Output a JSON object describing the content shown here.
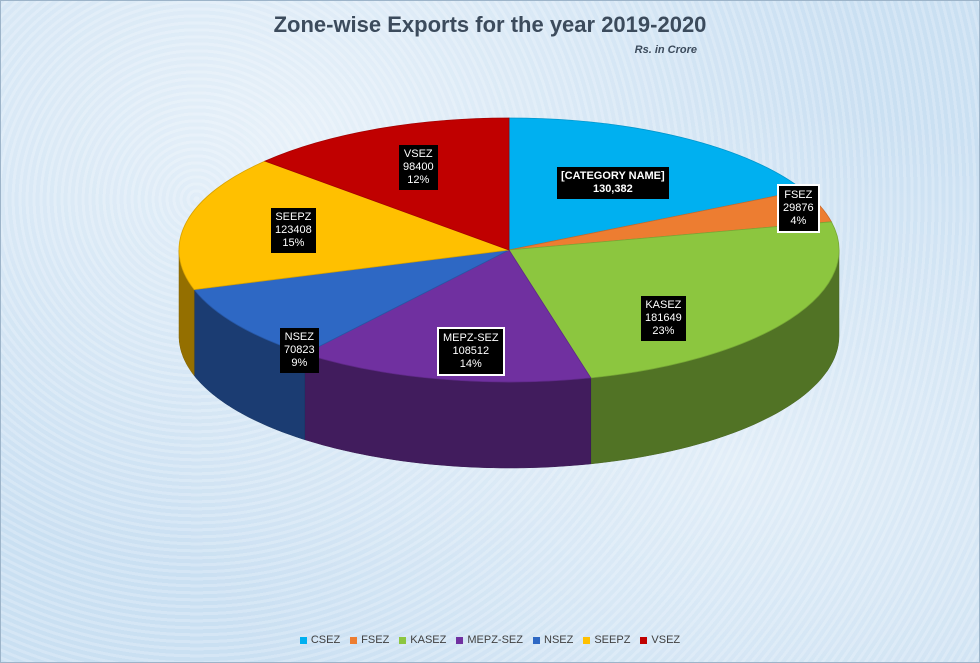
{
  "chart_data": {
    "type": "pie",
    "title": "Zone-wise Exports for the year 2019-2020",
    "subtitle": "Rs. in Crore",
    "legend_position": "bottom",
    "slices": [
      {
        "name": "CSEZ",
        "value": 130382,
        "label_name": "[CATEGORY NAME]",
        "value_label": "130,382",
        "percent_label": "",
        "color": "#00b0f0"
      },
      {
        "name": "FSEZ",
        "value": 29876,
        "label_name": "FSEZ",
        "value_label": "29876",
        "percent_label": "4%",
        "color": "#ed7d31"
      },
      {
        "name": "KASEZ",
        "value": 181649,
        "label_name": "KASEZ",
        "value_label": "181649",
        "percent_label": "23%",
        "color": "#8cc63f"
      },
      {
        "name": "MEPZ-SEZ",
        "value": 108512,
        "label_name": "MEPZ-SEZ",
        "value_label": "108512",
        "percent_label": "14%",
        "color": "#7030a0"
      },
      {
        "name": "NSEZ",
        "value": 70823,
        "label_name": "NSEZ",
        "value_label": "70823",
        "percent_label": "9%",
        "color": "#2e68c4"
      },
      {
        "name": "SEEPZ",
        "value": 123408,
        "label_name": "SEEPZ",
        "value_label": "123408",
        "percent_label": "15%",
        "color": "#ffc000"
      },
      {
        "name": "VSEZ",
        "value": 98400,
        "label_name": "VSEZ",
        "value_label": "98400",
        "percent_label": "12%",
        "color": "#c00000"
      }
    ]
  }
}
